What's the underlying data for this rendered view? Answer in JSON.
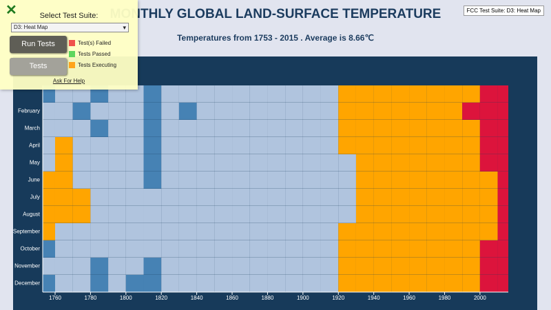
{
  "chart_data": {
    "type": "heatmap",
    "title": "MONTHLY GLOBAL LAND-SURFACE TEMPERATURE",
    "subtitle": "Temperatures from 1753 - 2015 . Average is 8.66℃",
    "categories": [
      null,
      "February",
      "March",
      "April",
      "May",
      "June",
      "July",
      "August",
      "September",
      "October",
      "November",
      "December"
    ],
    "x": [
      1750,
      1760,
      1770,
      1780,
      1790,
      1800,
      1810,
      1820,
      1830,
      1840,
      1850,
      1860,
      1870,
      1880,
      1890,
      1900,
      1910,
      1920,
      1930,
      1940,
      1950,
      1960,
      1970,
      1980,
      1990,
      2000,
      2010
    ],
    "bin_width": 10,
    "xlim": [
      1753,
      2016
    ],
    "xticks": [
      1760,
      1780,
      1800,
      1820,
      1840,
      1860,
      1880,
      1900,
      1920,
      1940,
      1960,
      1980,
      2000
    ],
    "color_scale": {
      "breaks": [
        -0.8,
        0,
        0.8
      ],
      "colors": [
        "#4682b4",
        "#b0c4de",
        "#ffa500",
        "#dc143c"
      ]
    },
    "series": [
      {
        "values": [
          -0.9,
          -0.5,
          -0.6,
          -1.0,
          -0.2,
          -0.7,
          -1.1,
          -0.4,
          -0.8,
          -0.6,
          -0.5,
          -0.6,
          -0.5,
          -0.6,
          -0.7,
          -0.4,
          -0.3,
          0.1,
          0.2,
          0.1,
          0.0,
          0.1,
          0.2,
          0.4,
          0.7,
          1.0,
          1.2
        ]
      },
      {
        "values": [
          -0.7,
          -0.3,
          -0.9,
          -0.6,
          -0.4,
          -0.5,
          -1.0,
          -0.2,
          -0.9,
          -0.5,
          -0.6,
          -0.4,
          -0.5,
          -0.7,
          -0.6,
          -0.5,
          -0.2,
          0.1,
          0.2,
          0.0,
          0.1,
          0.0,
          0.3,
          0.5,
          0.8,
          0.9,
          1.3
        ]
      },
      {
        "values": [
          -0.8,
          -0.4,
          -0.5,
          -0.9,
          -0.3,
          -0.6,
          -0.9,
          -0.5,
          -0.7,
          -0.6,
          -0.5,
          -0.5,
          -0.4,
          -0.6,
          -0.5,
          -0.4,
          -0.2,
          0.0,
          0.1,
          0.1,
          0.0,
          0.1,
          0.2,
          0.4,
          0.6,
          0.9,
          1.1
        ]
      },
      {
        "values": [
          -0.3,
          0.2,
          -0.6,
          -0.8,
          -0.5,
          -0.4,
          -0.9,
          -0.6,
          -0.5,
          -0.7,
          -0.5,
          -0.4,
          -0.5,
          -0.6,
          -0.5,
          -0.4,
          -0.3,
          0.0,
          0.1,
          0.2,
          0.1,
          0.1,
          0.3,
          0.4,
          0.7,
          0.9,
          1.0
        ]
      },
      {
        "values": [
          -0.4,
          0.1,
          -0.3,
          -0.7,
          -0.2,
          -0.5,
          -0.9,
          -0.4,
          -0.5,
          -0.4,
          -0.4,
          -0.5,
          -0.3,
          -0.5,
          -0.4,
          -0.3,
          -0.3,
          -0.1,
          0.1,
          0.2,
          0.1,
          0.1,
          0.2,
          0.3,
          0.5,
          0.8,
          1.0
        ]
      },
      {
        "values": [
          0.2,
          0.3,
          -0.2,
          -0.5,
          -0.3,
          -0.4,
          -0.9,
          -0.4,
          -0.5,
          -0.3,
          -0.3,
          -0.3,
          -0.3,
          -0.4,
          -0.4,
          -0.3,
          -0.3,
          -0.2,
          0.0,
          0.1,
          0.1,
          0.0,
          0.1,
          0.2,
          0.5,
          0.7,
          0.9
        ]
      },
      {
        "values": [
          0.4,
          0.2,
          0.1,
          -0.4,
          -0.2,
          -0.3,
          -0.8,
          -0.3,
          -0.4,
          -0.3,
          -0.3,
          -0.2,
          -0.3,
          -0.4,
          -0.4,
          -0.3,
          -0.3,
          -0.2,
          0.0,
          0.1,
          0.0,
          0.0,
          0.1,
          0.2,
          0.4,
          0.7,
          0.8
        ]
      },
      {
        "values": [
          0.3,
          0.1,
          0.2,
          -0.3,
          -0.2,
          -0.3,
          -0.8,
          -0.3,
          -0.4,
          -0.3,
          -0.2,
          -0.3,
          -0.3,
          -0.4,
          -0.3,
          -0.3,
          -0.2,
          -0.1,
          0.1,
          0.1,
          0.1,
          0.0,
          0.1,
          0.2,
          0.4,
          0.7,
          0.9
        ]
      },
      {
        "values": [
          0.1,
          -0.1,
          -0.2,
          -0.5,
          -0.4,
          -0.3,
          -0.8,
          -0.4,
          -0.4,
          -0.4,
          -0.3,
          -0.3,
          -0.3,
          -0.4,
          -0.4,
          -0.3,
          -0.2,
          0.0,
          0.1,
          0.1,
          0.1,
          0.0,
          0.1,
          0.3,
          0.4,
          0.7,
          0.9
        ]
      },
      {
        "values": [
          -0.9,
          -0.4,
          -0.5,
          -0.6,
          -0.8,
          -0.4,
          -0.8,
          -0.3,
          -0.5,
          -0.5,
          -0.4,
          -0.3,
          -0.4,
          -0.5,
          -0.5,
          -0.3,
          -0.2,
          0.1,
          0.2,
          0.1,
          0.1,
          0.1,
          0.1,
          0.3,
          0.5,
          0.9,
          1.2
        ]
      },
      {
        "values": [
          -0.8,
          -0.3,
          -0.7,
          -0.9,
          -0.6,
          -0.6,
          -1.0,
          -0.5,
          -0.6,
          -0.5,
          -0.5,
          -0.4,
          -0.5,
          -0.6,
          -0.5,
          -0.4,
          -0.3,
          0.1,
          0.1,
          0.1,
          0.0,
          0.1,
          0.2,
          0.3,
          0.6,
          0.9,
          1.0
        ]
      },
      {
        "values": [
          -1.0,
          -0.6,
          -0.8,
          -1.1,
          -0.5,
          -0.9,
          -1.0,
          -0.6,
          -0.8,
          -0.6,
          -0.5,
          -0.6,
          -0.5,
          -0.7,
          -0.6,
          -0.4,
          -0.3,
          0.0,
          0.1,
          0.1,
          0.1,
          0.1,
          0.2,
          0.4,
          0.7,
          0.9,
          1.1
        ]
      }
    ]
  },
  "test_panel": {
    "suite_label": "Select Test Suite:",
    "selected_suite": "D3: Heat Map",
    "run_button": "Run Tests",
    "tests_button": "Tests",
    "legend": [
      {
        "label": "Test(s) Failed",
        "color": "#f0524c"
      },
      {
        "label": "Tests Passed",
        "color": "#5fd65f"
      },
      {
        "label": "Tests Executing",
        "color": "#ffa41b"
      }
    ],
    "help_link": "Ask For Help"
  },
  "suite_badge": "FCC Test Suite: D3: Heat Map"
}
